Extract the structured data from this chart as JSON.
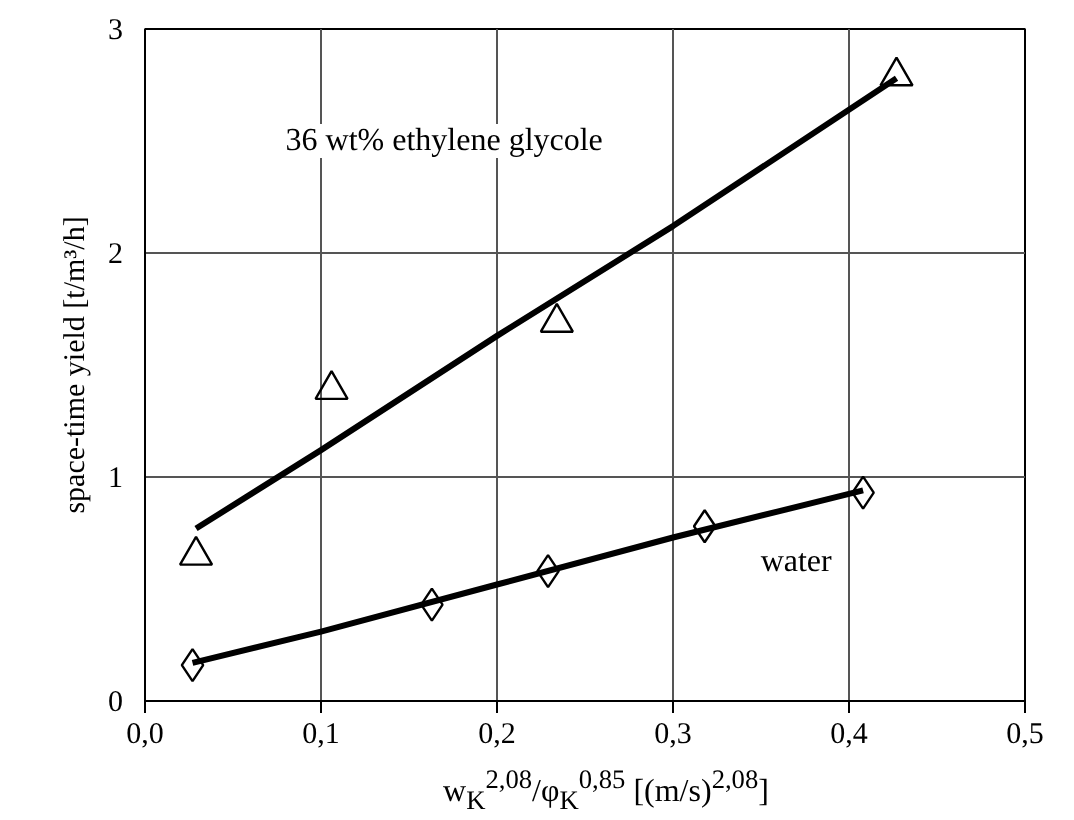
{
  "chart_data": {
    "type": "scatter",
    "xlabel": "w$_{K}$$^{2,08}$/φ$_{K}$$^{0,85}$ [(m/s)$^{2,08}$]",
    "ylabel": "space-time yield [t/m³/h]",
    "xlim": [
      0,
      0.5
    ],
    "ylim": [
      0,
      3
    ],
    "xticks": [
      {
        "value": 0,
        "label": "0,0"
      },
      {
        "value": 0.1,
        "label": "0,1"
      },
      {
        "value": 0.2,
        "label": "0,2"
      },
      {
        "value": 0.3,
        "label": "0,3"
      },
      {
        "value": 0.4,
        "label": "0,4"
      },
      {
        "value": 0.5,
        "label": "0,5"
      }
    ],
    "yticks": [
      0,
      1,
      2,
      3
    ],
    "grid": true,
    "annotations": [
      "36 wt% ethylene glycole",
      "water"
    ],
    "series": [
      {
        "marker": "triangle",
        "color": "#000000",
        "x": [
          0.029,
          0.106,
          0.234,
          0.427
        ],
        "values": [
          0.65,
          1.39,
          1.69,
          2.79
        ]
      },
      {
        "type": "line",
        "color": "#000000",
        "line_style": "solid",
        "x": [
          0.029,
          0.1,
          0.2,
          0.3,
          0.427
        ],
        "values": [
          0.77,
          1.12,
          1.63,
          2.12,
          2.78
        ]
      },
      {
        "marker": "diamond",
        "color": "#000000",
        "x": [
          0.027,
          0.163,
          0.229,
          0.318,
          0.408
        ],
        "values": [
          0.16,
          0.43,
          0.58,
          0.78,
          0.93
        ]
      },
      {
        "type": "line",
        "color": "#000000",
        "line_style": "solid",
        "x": [
          0.027,
          0.1,
          0.2,
          0.3,
          0.408
        ],
        "values": [
          0.17,
          0.31,
          0.52,
          0.73,
          0.94
        ]
      }
    ]
  }
}
